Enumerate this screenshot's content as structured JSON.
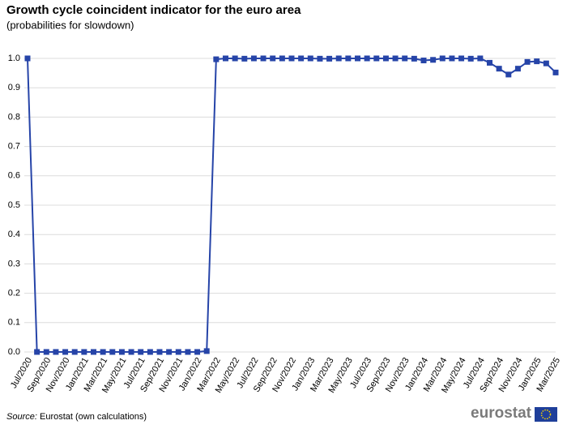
{
  "chart_data": {
    "type": "line",
    "title": "Growth cycle coincident indicator for the euro area",
    "subtitle": "(probabilities  for slowdown)",
    "source_label": "Source:",
    "source": "Eurostat (own calculations)",
    "logo": "eurostat",
    "categories": [
      "Jul/2020",
      null,
      "Sep/2020",
      null,
      "Nov/2020",
      null,
      "Jan/2021",
      null,
      "Mar/2021",
      null,
      "May/2021",
      null,
      "Jul/2021",
      null,
      "Sep/2021",
      null,
      "Nov/2021",
      null,
      "Jan/2022",
      null,
      "Mar/2022",
      null,
      "May/2022",
      null,
      "Jul/2022",
      null,
      "Sep/2022",
      null,
      "Nov/2022",
      null,
      "Jan/2023",
      null,
      "Mar/2023",
      null,
      "May/2023",
      null,
      "Jul/2023",
      null,
      "Sep/2023",
      null,
      "Nov/2023",
      null,
      "Jan/2024",
      null,
      "Mar/2024",
      null,
      "May/2024",
      null,
      "Jul/2024",
      null,
      "Sep/2024",
      null,
      "Nov/2024",
      null,
      "Jan/2025",
      null,
      "Mar/2025"
    ],
    "values": [
      1,
      0,
      0,
      0,
      0,
      0,
      0,
      0,
      0,
      0,
      0,
      0,
      0,
      0,
      0,
      0,
      0,
      0,
      0,
      0.003,
      0.997,
      1,
      1,
      0.999,
      1,
      1,
      1,
      1,
      1,
      1,
      1,
      0.999,
      0.999,
      1,
      1,
      1,
      1,
      1,
      1,
      1,
      1,
      0.999,
      0.993,
      0.995,
      1,
      1,
      1,
      0.999,
      1,
      0.985,
      0.965,
      0.945,
      0.965,
      0.988,
      0.99,
      0.983,
      0.952
    ],
    "color": "#2644a8",
    "ylim": [
      0,
      1
    ],
    "yticks": [
      {
        "value": 0,
        "label": "0.0"
      },
      0.1,
      0.2,
      0.3,
      0.4,
      0.5,
      0.6,
      0.7,
      0.8,
      0.9,
      {
        "value": 1,
        "label": "1.0"
      }
    ],
    "grid": true
  }
}
